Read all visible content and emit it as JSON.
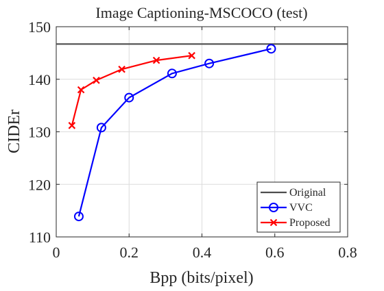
{
  "chart_data": {
    "type": "line",
    "title": "Image Captioning-MSCOCO (test)",
    "xlabel": "Bpp (bits/pixel)",
    "ylabel": "CIDEr",
    "xlim": [
      0,
      0.8
    ],
    "ylim": [
      110,
      150
    ],
    "xticks": [
      0,
      0.2,
      0.4,
      0.6,
      0.8
    ],
    "xtick_labels": [
      "0",
      "0.2",
      "0.4",
      "0.6",
      "0.8"
    ],
    "yticks": [
      110,
      120,
      130,
      140,
      150
    ],
    "ytick_labels": [
      "110",
      "120",
      "130",
      "140",
      "150"
    ],
    "grid": true,
    "legend_position": "bottom-right",
    "series": [
      {
        "name": "Original",
        "color": "#4d4d4d",
        "marker": "none",
        "style": "horizontal-line",
        "x": [
          0,
          0.8
        ],
        "y": [
          146.7,
          146.7
        ]
      },
      {
        "name": "VVC",
        "color": "#0000ff",
        "marker": "circle",
        "x": [
          0.062,
          0.124,
          0.2,
          0.318,
          0.42,
          0.59
        ],
        "y": [
          113.9,
          130.8,
          136.5,
          141.1,
          143.0,
          145.8
        ]
      },
      {
        "name": "Proposed",
        "color": "#ff0000",
        "marker": "x",
        "x": [
          0.043,
          0.068,
          0.11,
          0.18,
          0.275,
          0.372
        ],
        "y": [
          131.2,
          138.0,
          139.8,
          141.9,
          143.6,
          144.5
        ]
      }
    ]
  }
}
